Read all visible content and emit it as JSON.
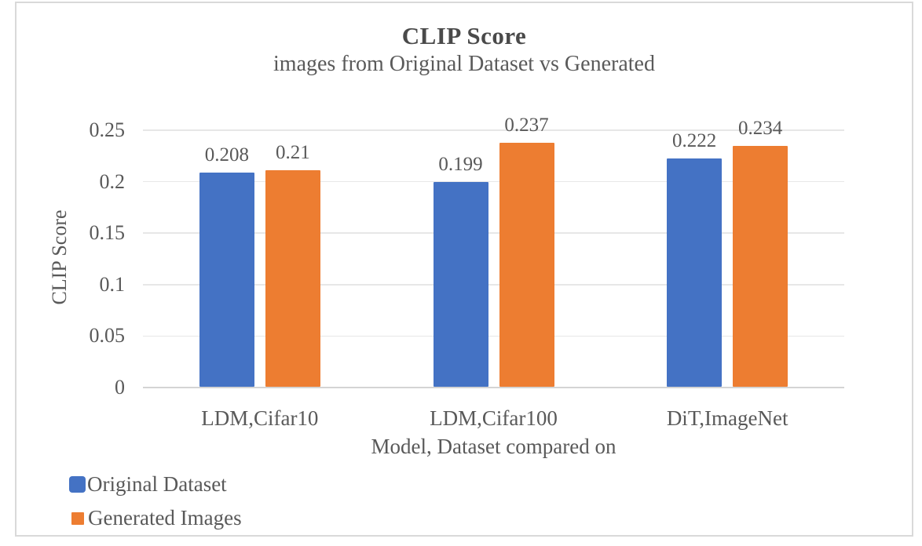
{
  "chart_data": {
    "type": "bar",
    "title": "CLIP Score",
    "subtitle": "images from Original Dataset vs Generated",
    "categories": [
      "LDM,Cifar10",
      "LDM,Cifar100",
      "DiT,ImageNet"
    ],
    "series": [
      {
        "name": "Original Dataset",
        "color": "#4472C4",
        "values": [
          0.208,
          0.199,
          0.222
        ],
        "labels": [
          "0.208",
          "0.199",
          "0.222"
        ]
      },
      {
        "name": "Generated Images",
        "color": "#ED7D31",
        "values": [
          0.21,
          0.237,
          0.234
        ],
        "labels": [
          "0.21",
          "0.237",
          "0.234"
        ]
      }
    ],
    "xlabel": "Model, Dataset compared on",
    "ylabel": "CLIP Score",
    "ylim": [
      0,
      0.25
    ],
    "ytick_step": 0.05,
    "yticks": [
      "0.25",
      "0.2",
      "0.15",
      "0.1",
      "0.05",
      "0"
    ],
    "grid": true,
    "legend_position": "bottom-left"
  },
  "colors": {
    "series_blue": "#4472C4",
    "series_orange": "#ED7D31",
    "text_gray": "#595959",
    "gridline": "#E7E7E7",
    "frame_border": "#D9D9D9"
  }
}
